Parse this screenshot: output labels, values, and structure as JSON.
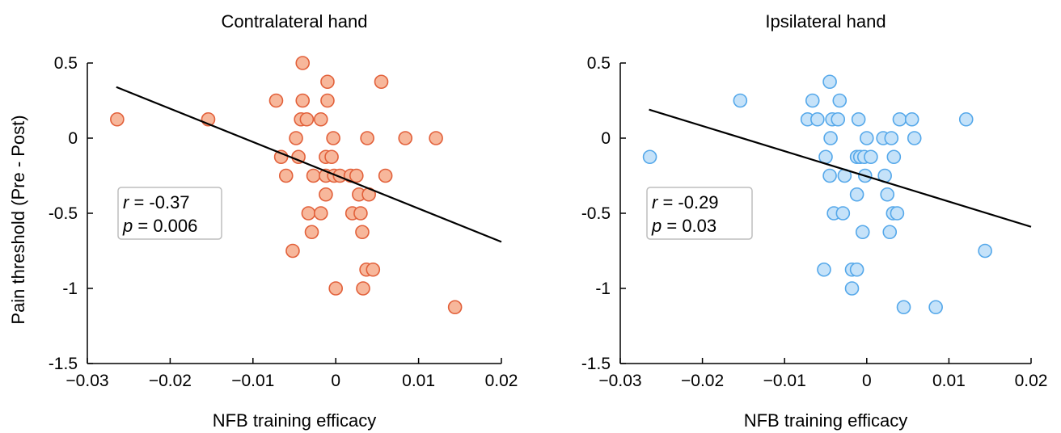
{
  "chart_data": [
    {
      "type": "scatter",
      "title": "Contralateral hand",
      "xlabel": "NFB training efficacy",
      "ylabel": "Pain threshold (Pre - Post)",
      "xlim": [
        -0.03,
        0.02
      ],
      "ylim": [
        -1.5,
        0.5
      ],
      "xticks": [
        "−0.03",
        "−0.02",
        "−0.01",
        "0",
        "0.01",
        "0.02"
      ],
      "yticks": [
        "0.5",
        "0",
        "-0.5",
        "-1",
        "-1.5"
      ],
      "marker_color": "#f7b79b",
      "marker_edge": "#e2603a",
      "stats": {
        "r_symbol": "r",
        "r_value": " = -0.37",
        "p_symbol": "p",
        "p_value": " = 0.006"
      },
      "fit": {
        "x": [
          -0.0265,
          0.02
        ],
        "y": [
          0.34,
          -0.69
        ]
      },
      "points": [
        [
          -0.0264,
          0.125
        ],
        [
          -0.0154,
          0.125
        ],
        [
          -0.0072,
          0.25
        ],
        [
          -0.0066,
          -0.125
        ],
        [
          -0.006,
          -0.25
        ],
        [
          -0.0052,
          -0.75
        ],
        [
          -0.0048,
          0.0
        ],
        [
          -0.0045,
          -0.125
        ],
        [
          -0.0042,
          0.125
        ],
        [
          -0.004,
          0.5
        ],
        [
          -0.004,
          0.25
        ],
        [
          -0.0035,
          0.125
        ],
        [
          -0.0033,
          -0.5
        ],
        [
          -0.0029,
          -0.625
        ],
        [
          -0.0027,
          -0.25
        ],
        [
          -0.0018,
          0.125
        ],
        [
          -0.0018,
          -0.5
        ],
        [
          -0.0012,
          -0.125
        ],
        [
          -0.0012,
          -0.375
        ],
        [
          -0.0012,
          -0.25
        ],
        [
          -0.001,
          0.375
        ],
        [
          -0.001,
          0.25
        ],
        [
          -0.0005,
          -0.125
        ],
        [
          -0.0003,
          0.0
        ],
        [
          -0.0002,
          -0.25
        ],
        [
          0.0,
          -1.0
        ],
        [
          0.0005,
          -0.25
        ],
        [
          0.0018,
          -0.25
        ],
        [
          0.002,
          -0.5
        ],
        [
          0.0025,
          -0.25
        ],
        [
          0.0028,
          -0.375
        ],
        [
          0.003,
          -0.5
        ],
        [
          0.0032,
          -0.625
        ],
        [
          0.0033,
          -1.0
        ],
        [
          0.0037,
          -0.875
        ],
        [
          0.0038,
          0.0
        ],
        [
          0.004,
          -0.375
        ],
        [
          0.0045,
          -0.875
        ],
        [
          0.0055,
          0.375
        ],
        [
          0.006,
          -0.25
        ],
        [
          0.0084,
          0.0
        ],
        [
          0.0121,
          0.0
        ],
        [
          0.0144,
          -1.125
        ]
      ]
    },
    {
      "type": "scatter",
      "title": "Ipsilateral hand",
      "xlabel": "NFB training efficacy",
      "ylabel": "",
      "xlim": [
        -0.03,
        0.02
      ],
      "ylim": [
        -1.5,
        0.5
      ],
      "xticks": [
        "−0.03",
        "−0.02",
        "−0.01",
        "0",
        "0.01",
        "0.02"
      ],
      "yticks": [
        "0.5",
        "0",
        "-0.5",
        "-1",
        "-1.5"
      ],
      "marker_color": "#c5e2f9",
      "marker_edge": "#55a8ea",
      "stats": {
        "r_symbol": "r",
        "r_value": " = -0.29",
        "p_symbol": "p",
        "p_value": " = 0.03"
      },
      "fit": {
        "x": [
          -0.0265,
          0.02
        ],
        "y": [
          0.19,
          -0.59
        ]
      },
      "points": [
        [
          -0.0264,
          -0.125
        ],
        [
          -0.0154,
          0.25
        ],
        [
          -0.0072,
          0.125
        ],
        [
          -0.0066,
          0.25
        ],
        [
          -0.006,
          0.125
        ],
        [
          -0.0052,
          -0.875
        ],
        [
          -0.005,
          -0.125
        ],
        [
          -0.0045,
          0.375
        ],
        [
          -0.0045,
          -0.25
        ],
        [
          -0.0044,
          0.0
        ],
        [
          -0.0042,
          0.125
        ],
        [
          -0.004,
          -0.5
        ],
        [
          -0.0035,
          0.125
        ],
        [
          -0.0033,
          0.25
        ],
        [
          -0.0029,
          -0.5
        ],
        [
          -0.0027,
          -0.25
        ],
        [
          -0.0018,
          -0.875
        ],
        [
          -0.0018,
          -1.0
        ],
        [
          -0.0012,
          -0.125
        ],
        [
          -0.0012,
          -0.875
        ],
        [
          -0.0012,
          -0.375
        ],
        [
          -0.001,
          0.125
        ],
        [
          -0.0008,
          -0.125
        ],
        [
          -0.0005,
          -0.625
        ],
        [
          -0.0003,
          -0.125
        ],
        [
          -0.0002,
          -0.25
        ],
        [
          0.0,
          0.0
        ],
        [
          0.0005,
          -0.125
        ],
        [
          0.002,
          0.0
        ],
        [
          0.0022,
          -0.25
        ],
        [
          0.0025,
          -0.375
        ],
        [
          0.0028,
          -0.625
        ],
        [
          0.003,
          0.0
        ],
        [
          0.0032,
          -0.5
        ],
        [
          0.0033,
          -0.125
        ],
        [
          0.0037,
          -0.5
        ],
        [
          0.004,
          0.125
        ],
        [
          0.0045,
          -1.125
        ],
        [
          0.0055,
          0.125
        ],
        [
          0.0058,
          0.0
        ],
        [
          0.0084,
          -1.125
        ],
        [
          0.0121,
          0.125
        ],
        [
          0.0144,
          -0.75
        ]
      ]
    }
  ]
}
